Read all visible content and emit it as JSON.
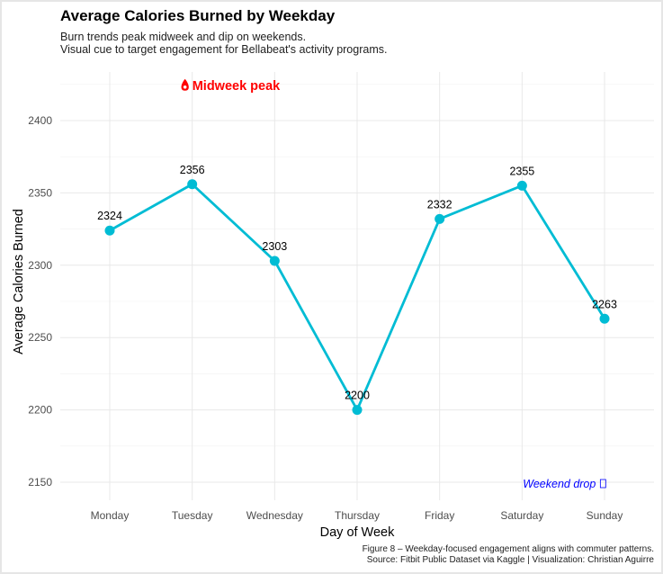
{
  "title": "Average Calories Burned by Weekday",
  "subtitle_lines": [
    "Burn trends peak midweek and dip on weekends.",
    "Visual cue to target engagement for Bellabeat's activity programs."
  ],
  "caption_lines": [
    "Figure 8 – Weekday-focused engagement aligns with commuter patterns.",
    "Source: Fitbit Public Dataset via Kaggle | Visualization: Christian Aguirre"
  ],
  "chart_data": {
    "type": "line",
    "title": "Average Calories Burned by Weekday",
    "xlabel": "Day of Week",
    "ylabel": "Average Calories Burned",
    "categories": [
      "Monday",
      "Tuesday",
      "Wednesday",
      "Thursday",
      "Friday",
      "Saturday",
      "Sunday"
    ],
    "values": [
      2324,
      2356,
      2303,
      2200,
      2332,
      2355,
      2263
    ],
    "yticks": [
      2150,
      2200,
      2250,
      2300,
      2350,
      2400
    ],
    "ylim": [
      2135,
      2435
    ],
    "grid": true,
    "line_color": "#00BCD4",
    "annotations": [
      {
        "text": "Midweek peak",
        "icon": "fire-icon",
        "color": "#FF0000",
        "category": "Tuesday",
        "y": 2425
      },
      {
        "text": "Weekend drop",
        "icon": "missing-glyph-box",
        "color": "#0000FF",
        "category": "Saturday",
        "y": 2150
      }
    ]
  }
}
